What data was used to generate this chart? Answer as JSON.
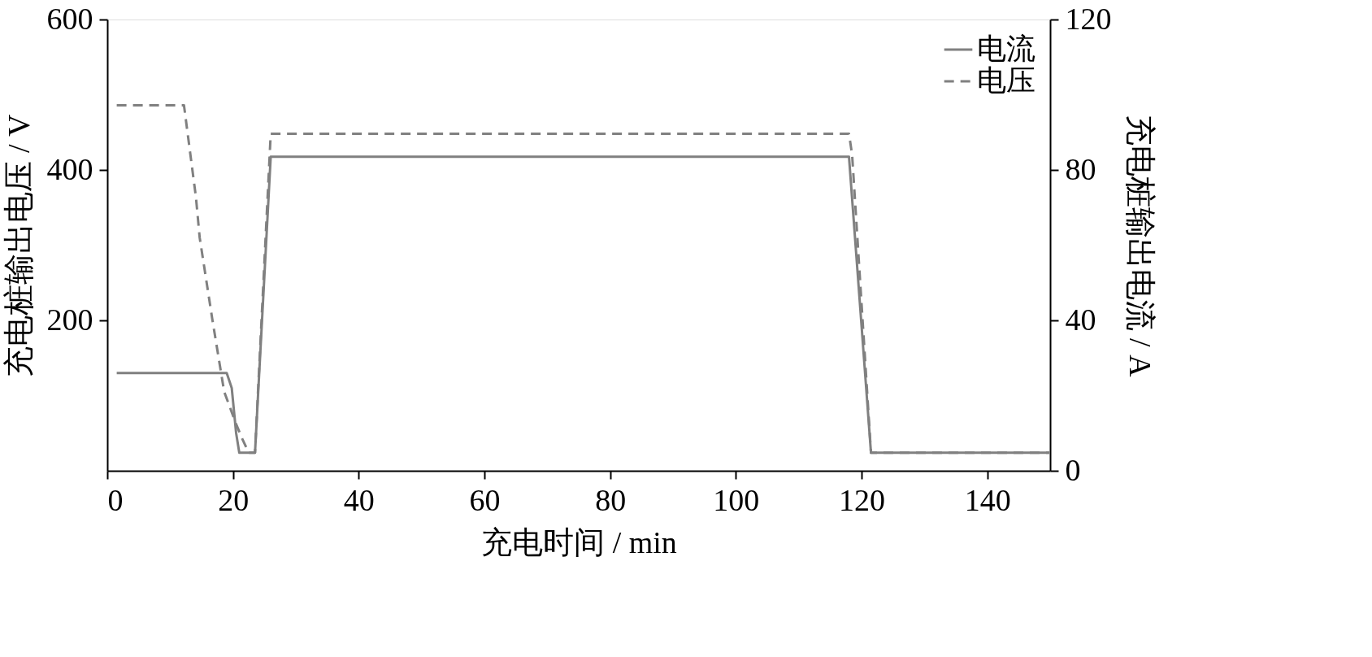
{
  "chart_data": {
    "type": "line",
    "xlabel": "充电时间 / min",
    "ylabel": "充电桩输出电压 / V",
    "y2label": "充电桩输出电流 / A",
    "xlim": [
      0,
      150
    ],
    "xticks": [
      0,
      20,
      40,
      60,
      80,
      100,
      120,
      140
    ],
    "ylim": [
      0,
      600
    ],
    "yticks": [
      200,
      400,
      600
    ],
    "y2lim": [
      0,
      120
    ],
    "y2ticks": [
      0,
      40,
      80,
      120
    ],
    "legend": "top right",
    "grid": false,
    "series": [
      {
        "name": "电流",
        "color": "#808080",
        "axis": "y2",
        "line_style": "solid",
        "x": [
          1.5,
          19,
          19.8,
          20.5,
          21,
          23.5,
          26,
          118,
          121.5,
          150
        ],
        "values": [
          26,
          26,
          22,
          10,
          4.8,
          4.8,
          83.5,
          83.5,
          4.8,
          4.8
        ]
      },
      {
        "name": "电压",
        "color": "#808080",
        "axis": "y",
        "line_style": "dashed",
        "x": [
          1.5,
          12.2,
          14.1,
          14.7,
          16.7,
          18.6,
          20.5,
          21.5,
          22.5,
          23.5,
          26,
          118,
          118.5,
          121.5,
          150
        ],
        "values": [
          486,
          486,
          364,
          310,
          202,
          105,
          62,
          42,
          24,
          24,
          448,
          448,
          420,
          24,
          24
        ]
      }
    ]
  }
}
